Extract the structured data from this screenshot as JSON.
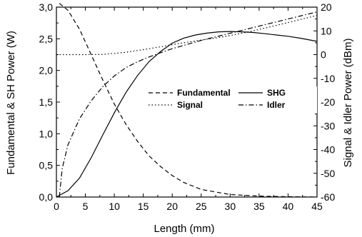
{
  "chart_data": {
    "type": "line",
    "title": "",
    "xlabel": "Length (mm)",
    "ylabel_left": "Fundamental & SH Power (W)",
    "ylabel_right": "Signal & Idler Power (dBm)",
    "xlim": [
      0,
      45
    ],
    "ylim_left": [
      0,
      3.0
    ],
    "ylim_right": [
      -60,
      20
    ],
    "x_ticks": [
      "0",
      "5",
      "10",
      "15",
      "20",
      "25",
      "30",
      "35",
      "40",
      "45"
    ],
    "y_left_ticks": [
      "0,0",
      "0,5",
      "1,0",
      "1,5",
      "2,0",
      "2,5",
      "3,0"
    ],
    "y_right_ticks": [
      "-60",
      "-50",
      "-40",
      "-30",
      "-20",
      "-10",
      "0",
      "10",
      "20"
    ],
    "grid": false,
    "legend_position": "center-right",
    "series": [
      {
        "name": "Fundamental",
        "axis": "left",
        "style": "dashed",
        "x": [
          0.5,
          2,
          4,
          6,
          8,
          10,
          12,
          14,
          16,
          18,
          20,
          22,
          25,
          30,
          35,
          40,
          45
        ],
        "y": [
          3.06,
          2.95,
          2.65,
          2.25,
          1.85,
          1.47,
          1.15,
          0.88,
          0.65,
          0.48,
          0.34,
          0.23,
          0.12,
          0.04,
          0.015,
          0.005,
          0.0
        ]
      },
      {
        "name": "SHG",
        "axis": "left",
        "style": "solid",
        "x": [
          0,
          2,
          4,
          6,
          8,
          10,
          12,
          14,
          16,
          18,
          20,
          22,
          24,
          26,
          28,
          30,
          32,
          34,
          36,
          38,
          40,
          42,
          45
        ],
        "y": [
          0.0,
          0.1,
          0.3,
          0.62,
          0.98,
          1.33,
          1.65,
          1.92,
          2.14,
          2.3,
          2.43,
          2.51,
          2.56,
          2.59,
          2.61,
          2.615,
          2.61,
          2.6,
          2.58,
          2.56,
          2.54,
          2.51,
          2.46
        ]
      },
      {
        "name": "Signal",
        "axis": "right",
        "style": "dotted",
        "x": [
          0,
          5,
          8,
          10,
          12,
          14,
          16,
          18,
          20,
          22,
          25,
          28,
          30,
          33,
          36,
          40,
          45
        ],
        "y": [
          0.0,
          0.0,
          0.1,
          0.5,
          1.0,
          1.7,
          2.5,
          3.3,
          4.2,
          5.0,
          6.1,
          7.2,
          8.0,
          9.5,
          11.2,
          13.5,
          16.5
        ]
      },
      {
        "name": "Idler",
        "axis": "right",
        "style": "dash-dot",
        "x": [
          0.5,
          1,
          2,
          4,
          6,
          8,
          10,
          12,
          14,
          16,
          18,
          20,
          25,
          30,
          35,
          40,
          45
        ],
        "y": [
          -60,
          -48,
          -38,
          -27,
          -19.5,
          -13.5,
          -9,
          -5.5,
          -3,
          -1,
          0.8,
          2.5,
          6,
          9,
          12,
          15,
          18
        ]
      }
    ]
  }
}
